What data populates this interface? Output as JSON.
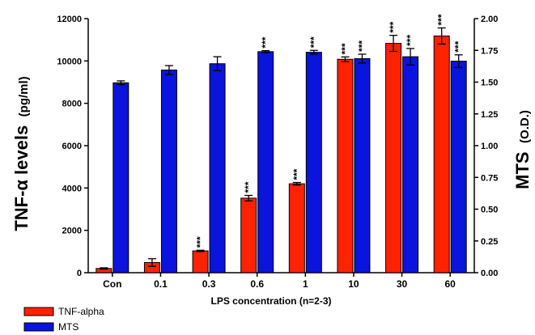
{
  "chart_data": {
    "type": "bar",
    "xlabel": "LPS concentration (n=2-3)",
    "ylabel_left": {
      "main": "TNF-α levels",
      "unit": "(pg/ml)"
    },
    "ylabel_right": {
      "main": "MTS",
      "unit": "(O.D.)"
    },
    "ylim_left": [
      0,
      12000
    ],
    "ylim_right": [
      0,
      2.0
    ],
    "left_ticks": [
      "0",
      "2000",
      "4000",
      "6000",
      "8000",
      "10000",
      "12000"
    ],
    "right_ticks": [
      "0.00",
      "0.25",
      "0.50",
      "0.75",
      "1.00",
      "1.25",
      "1.50",
      "1.75",
      "2.00"
    ],
    "categories": [
      "Con",
      "0.1",
      "0.3",
      "0.6",
      "1",
      "10",
      "30",
      "60"
    ],
    "series": [
      {
        "name": "TNF-alpha",
        "axis": "left",
        "color": "#ff2200",
        "values": [
          200,
          480,
          1030,
          3520,
          4200,
          10080,
          10830,
          11180
        ],
        "errors": [
          30,
          180,
          30,
          130,
          60,
          110,
          380,
          380
        ],
        "annotations": [
          "",
          "",
          "***",
          "***",
          "***",
          "***",
          "***",
          "***"
        ]
      },
      {
        "name": "MTS",
        "axis": "right",
        "color": "#0a14dc",
        "values": [
          1.495,
          1.595,
          1.645,
          1.74,
          1.735,
          1.685,
          1.7,
          1.665
        ],
        "errors": [
          0.015,
          0.035,
          0.055,
          0.008,
          0.015,
          0.035,
          0.065,
          0.05
        ],
        "annotations": [
          "",
          "",
          "",
          "***",
          "***",
          "***",
          "***",
          "***"
        ]
      }
    ],
    "legend_position": "bottom-left"
  }
}
